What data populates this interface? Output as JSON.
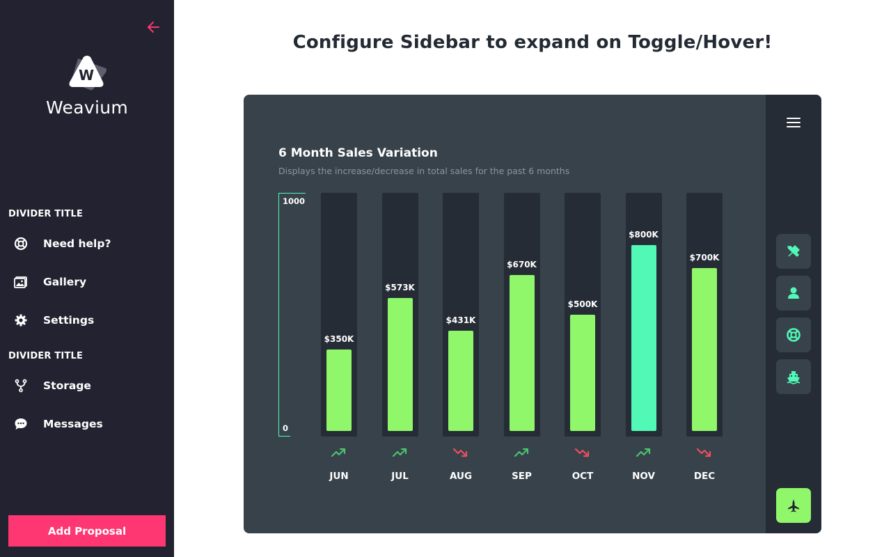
{
  "sidebar": {
    "brand": "Weavium",
    "logo_letter": "W",
    "dividers": [
      "DIVIDER TITLE",
      "DIVIDER TITLE"
    ],
    "items": [
      {
        "label": "Need help?",
        "icon": "lifebuoy-icon"
      },
      {
        "label": "Gallery",
        "icon": "image-icon"
      },
      {
        "label": "Settings",
        "icon": "gear-icon"
      },
      {
        "label": "Storage",
        "icon": "fork-icon"
      },
      {
        "label": "Messages",
        "icon": "chat-bubble-icon"
      }
    ],
    "add_button": "Add Proposal",
    "colors": {
      "bg": "#222230",
      "accent": "#fe3672"
    }
  },
  "main": {
    "title": "Configure Sidebar to expand on Toggle/Hover!"
  },
  "card": {
    "title": "6 Month Sales Variation",
    "subtitle": "Displays the increase/decrease in total sales for the past 6 months",
    "rail_icons": [
      "menu-icon",
      "tools-icon",
      "user-icon",
      "lifebuoy-icon",
      "ship-icon",
      "jet-icon"
    ],
    "colors": {
      "bg": "#37424b",
      "track": "#262c35",
      "bar": "#90f76a",
      "highlight": "#52f8b6",
      "up": "#4cc36f",
      "down": "#ee4f5d"
    }
  },
  "chart_data": {
    "type": "bar",
    "categories": [
      "JUN",
      "JUL",
      "AUG",
      "SEP",
      "OCT",
      "NOV",
      "DEC"
    ],
    "values": [
      350,
      573,
      431,
      670,
      500,
      800,
      700
    ],
    "value_labels": [
      "$350K",
      "$573K",
      "$431K",
      "$670K",
      "$500K",
      "$800K",
      "$700K"
    ],
    "trends": [
      "up",
      "up",
      "down",
      "up",
      "down",
      "up",
      "down"
    ],
    "highlighted": "NOV",
    "axis_labels": {
      "max": "1000",
      "min": "0"
    },
    "ylim": [
      0,
      1000
    ]
  }
}
